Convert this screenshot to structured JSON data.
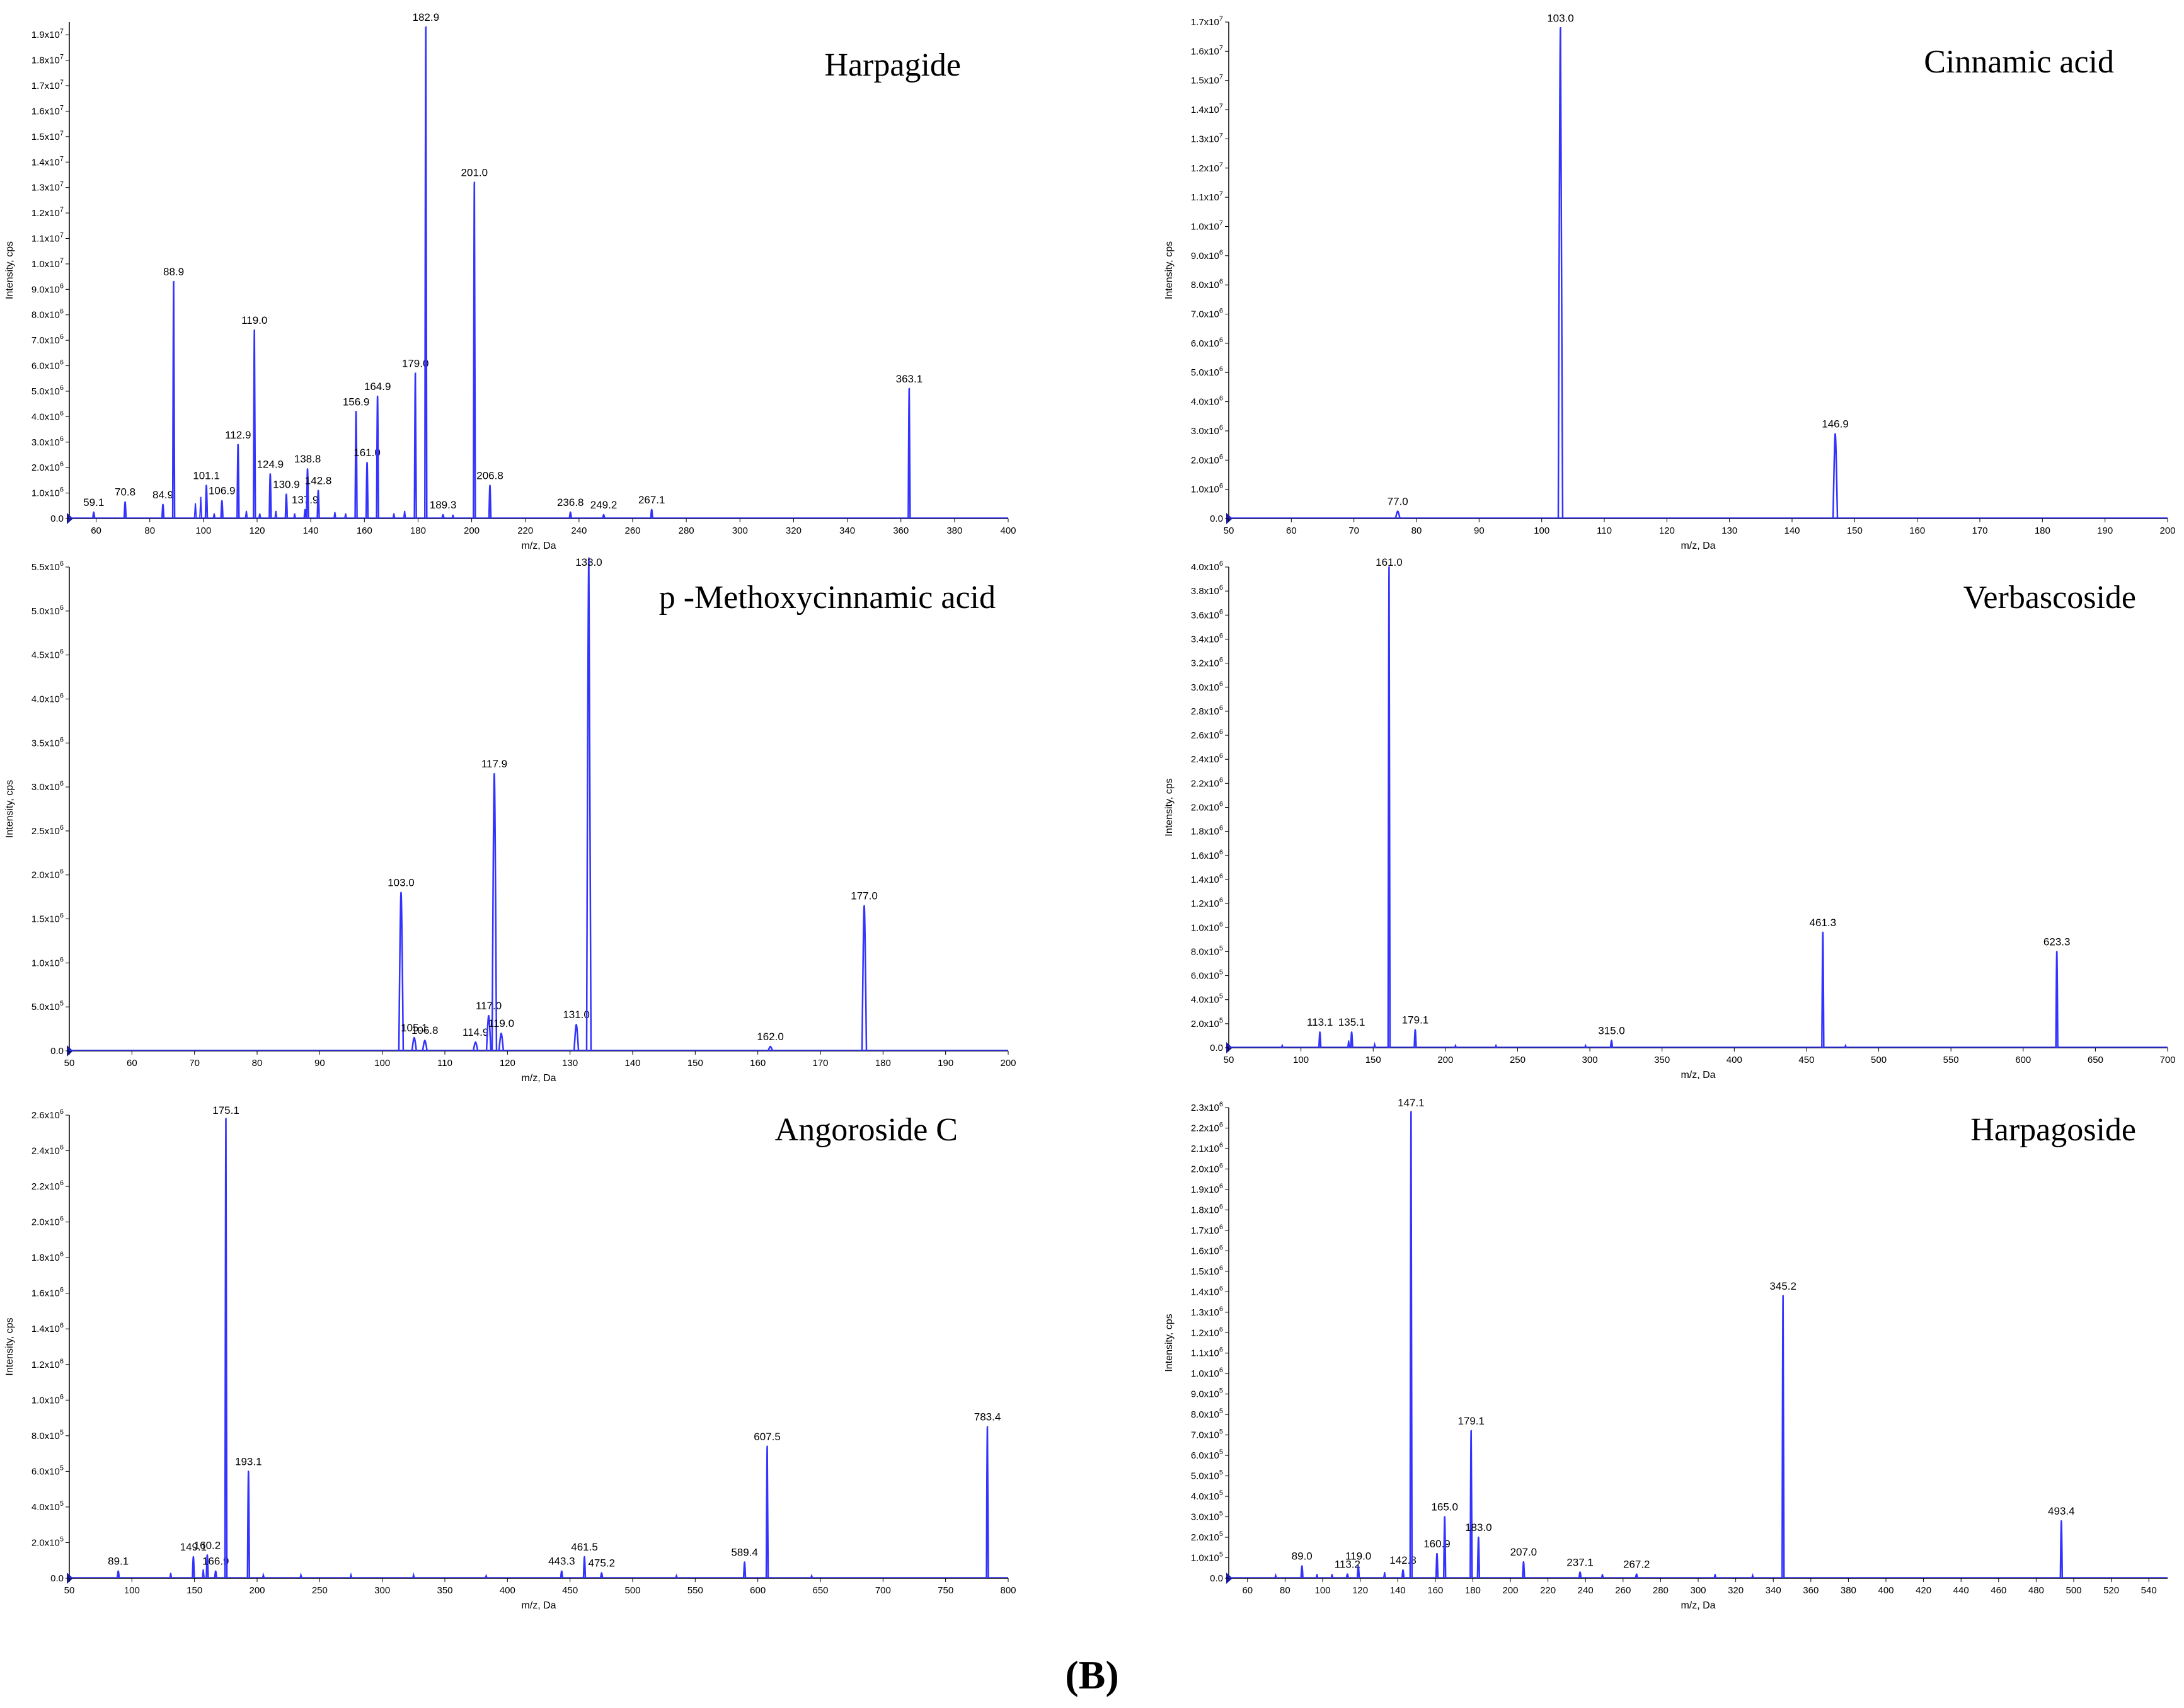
{
  "figure_caption": "(B)",
  "x_axis_label": "m/z, Da",
  "y_axis_label": "Intensity, cps",
  "chart_data": [
    {
      "type": "line",
      "title": "Harpagide",
      "xlabel": "m/z, Da",
      "ylabel": "Intensity, cps",
      "xlim": [
        50,
        400
      ],
      "ylim": [
        0,
        19500000
      ],
      "x_ticks": [
        60,
        80,
        100,
        120,
        140,
        160,
        180,
        200,
        220,
        240,
        260,
        280,
        300,
        320,
        340,
        360,
        380,
        400
      ],
      "y_ticks": [
        "0.0",
        "1.0x10^6",
        "2.0x10^6",
        "3.0x10^6",
        "4.0x10^6",
        "5.0x10^6",
        "6.0x10^6",
        "7.0x10^6",
        "8.0x10^6",
        "9.0x10^6",
        "1.0x10^7",
        "1.1x10^7",
        "1.2x10^7",
        "1.3x10^7",
        "1.4x10^7",
        "1.5x10^7",
        "1.6x10^7",
        "1.7x10^7",
        "1.8x10^7",
        "1.9x10^7"
      ],
      "y_tick_values": [
        0,
        1000000,
        2000000,
        3000000,
        4000000,
        5000000,
        6000000,
        7000000,
        8000000,
        9000000,
        10000000,
        11000000,
        12000000,
        13000000,
        14000000,
        15000000,
        16000000,
        17000000,
        18000000,
        19000000
      ],
      "peaks": [
        {
          "x": 59.1,
          "y": 250000,
          "label": "59.1"
        },
        {
          "x": 70.8,
          "y": 650000,
          "label": "70.8"
        },
        {
          "x": 84.9,
          "y": 550000,
          "label": "84.9"
        },
        {
          "x": 88.9,
          "y": 9300000,
          "label": "88.9"
        },
        {
          "x": 101.1,
          "y": 1300000,
          "label": "101.1"
        },
        {
          "x": 106.9,
          "y": 700000,
          "label": "106.9"
        },
        {
          "x": 112.9,
          "y": 2900000,
          "label": "112.9"
        },
        {
          "x": 119.0,
          "y": 7400000,
          "label": "119.0"
        },
        {
          "x": 124.9,
          "y": 1750000,
          "label": "124.9"
        },
        {
          "x": 130.9,
          "y": 950000,
          "label": "130.9"
        },
        {
          "x": 137.9,
          "y": 350000,
          "label": "137.9"
        },
        {
          "x": 138.8,
          "y": 1950000,
          "label": "138.8"
        },
        {
          "x": 142.8,
          "y": 1100000,
          "label": "142.8"
        },
        {
          "x": 156.9,
          "y": 4200000,
          "label": "156.9"
        },
        {
          "x": 161.0,
          "y": 2200000,
          "label": "161.0"
        },
        {
          "x": 164.9,
          "y": 4800000,
          "label": "164.9"
        },
        {
          "x": 179.0,
          "y": 5700000,
          "label": "179.0"
        },
        {
          "x": 182.9,
          "y": 19300000,
          "label": "182.9"
        },
        {
          "x": 189.3,
          "y": 150000,
          "label": "189.3"
        },
        {
          "x": 201.0,
          "y": 13200000,
          "label": "201.0"
        },
        {
          "x": 206.8,
          "y": 1300000,
          "label": "206.8"
        },
        {
          "x": 236.8,
          "y": 250000,
          "label": "236.8"
        },
        {
          "x": 249.2,
          "y": 150000,
          "label": "249.2"
        },
        {
          "x": 267.1,
          "y": 350000,
          "label": "267.1"
        },
        {
          "x": 363.1,
          "y": 5100000,
          "label": "363.1"
        }
      ],
      "minor_peaks": [
        {
          "x": 97.0,
          "y": 600000
        },
        {
          "x": 99.0,
          "y": 850000
        },
        {
          "x": 104.0,
          "y": 200000
        },
        {
          "x": 116.0,
          "y": 300000
        },
        {
          "x": 121.0,
          "y": 200000
        },
        {
          "x": 127.0,
          "y": 300000
        },
        {
          "x": 134.0,
          "y": 200000
        },
        {
          "x": 149.0,
          "y": 250000
        },
        {
          "x": 153.0,
          "y": 200000
        },
        {
          "x": 171.0,
          "y": 200000
        },
        {
          "x": 175.0,
          "y": 300000
        },
        {
          "x": 193.0,
          "y": 150000
        }
      ]
    },
    {
      "type": "line",
      "title": "Cinnamic acid",
      "xlabel": "m/z, Da",
      "ylabel": "Intensity, cps",
      "xlim": [
        50,
        200
      ],
      "ylim": [
        0,
        17000000
      ],
      "x_ticks": [
        50,
        60,
        70,
        80,
        90,
        100,
        110,
        120,
        130,
        140,
        150,
        160,
        170,
        180,
        190,
        200
      ],
      "y_ticks": [
        "0.0",
        "1.0x10^6",
        "2.0x10^6",
        "3.0x10^6",
        "4.0x10^6",
        "5.0x10^6",
        "6.0x10^6",
        "7.0x10^6",
        "8.0x10^6",
        "9.0x10^6",
        "1.0x10^7",
        "1.1x10^7",
        "1.2x10^7",
        "1.3x10^7",
        "1.4x10^7",
        "1.5x10^7",
        "1.6x10^7",
        "1.7x10^7"
      ],
      "y_tick_values": [
        0,
        1000000,
        2000000,
        3000000,
        4000000,
        5000000,
        6000000,
        7000000,
        8000000,
        9000000,
        10000000,
        11000000,
        12000000,
        13000000,
        14000000,
        15000000,
        16000000,
        17000000
      ],
      "peaks": [
        {
          "x": 77.0,
          "y": 250000,
          "label": "77.0"
        },
        {
          "x": 103.0,
          "y": 16800000,
          "label": "103.0"
        },
        {
          "x": 146.9,
          "y": 2900000,
          "label": "146.9"
        }
      ],
      "minor_peaks": []
    },
    {
      "type": "line",
      "title": "p -Methoxycinnamic acid",
      "xlabel": "m/z, Da",
      "ylabel": "Intensity, cps",
      "xlim": [
        50,
        200
      ],
      "ylim": [
        0,
        5500000
      ],
      "x_ticks": [
        50,
        60,
        70,
        80,
        90,
        100,
        110,
        120,
        130,
        140,
        150,
        160,
        170,
        180,
        190,
        200
      ],
      "y_ticks": [
        "0.0",
        "5.0x10^5",
        "1.0x10^6",
        "1.5x10^6",
        "2.0x10^6",
        "2.5x10^6",
        "3.0x10^6",
        "3.5x10^6",
        "4.0x10^6",
        "4.5x10^6",
        "5.0x10^6",
        "5.5x10^6"
      ],
      "y_tick_values": [
        0,
        500000,
        1000000,
        1500000,
        2000000,
        2500000,
        3000000,
        3500000,
        4000000,
        4500000,
        5000000,
        5500000
      ],
      "peaks": [
        {
          "x": 103.0,
          "y": 1800000,
          "label": "103.0"
        },
        {
          "x": 105.1,
          "y": 150000,
          "label": "105.1"
        },
        {
          "x": 106.8,
          "y": 120000,
          "label": "106.8"
        },
        {
          "x": 114.9,
          "y": 100000,
          "label": "114.9"
        },
        {
          "x": 117.0,
          "y": 400000,
          "label": "117.0"
        },
        {
          "x": 117.9,
          "y": 3150000,
          "label": "117.9"
        },
        {
          "x": 119.0,
          "y": 200000,
          "label": "119.0"
        },
        {
          "x": 131.0,
          "y": 300000,
          "label": "131.0"
        },
        {
          "x": 133.0,
          "y": 5600000,
          "label": "133.0"
        },
        {
          "x": 162.0,
          "y": 50000,
          "label": "162.0"
        },
        {
          "x": 177.0,
          "y": 1650000,
          "label": "177.0"
        }
      ],
      "minor_peaks": []
    },
    {
      "type": "line",
      "title": "Verbascoside",
      "xlabel": "m/z, Da",
      "ylabel": "Intensity, cps",
      "xlim": [
        50,
        700
      ],
      "ylim": [
        0,
        4000000
      ],
      "x_ticks": [
        50,
        100,
        150,
        200,
        250,
        300,
        350,
        400,
        450,
        500,
        550,
        600,
        650,
        700
      ],
      "y_ticks": [
        "0.0",
        "2.0x10^5",
        "4.0x10^5",
        "6.0x10^5",
        "8.0x10^5",
        "1.0x10^6",
        "1.2x10^6",
        "1.4x10^6",
        "1.6x10^6",
        "1.8x10^6",
        "2.0x10^6",
        "2.2x10^6",
        "2.4x10^6",
        "2.6x10^6",
        "2.8x10^6",
        "3.0x10^6",
        "3.2x10^6",
        "3.4x10^6",
        "3.6x10^6",
        "3.8x10^6",
        "4.0x10^6"
      ],
      "y_tick_values": [
        0,
        200000,
        400000,
        600000,
        800000,
        1000000,
        1200000,
        1400000,
        1600000,
        1800000,
        2000000,
        2200000,
        2400000,
        2600000,
        2800000,
        3000000,
        3200000,
        3400000,
        3600000,
        3800000,
        4000000
      ],
      "peaks": [
        {
          "x": 113.1,
          "y": 130000,
          "label": "113.1"
        },
        {
          "x": 135.1,
          "y": 130000,
          "label": "135.1"
        },
        {
          "x": 161.0,
          "y": 4000000,
          "label": "161.0"
        },
        {
          "x": 179.1,
          "y": 150000,
          "label": "179.1"
        },
        {
          "x": 315.0,
          "y": 60000,
          "label": "315.0"
        },
        {
          "x": 461.3,
          "y": 960000,
          "label": "461.3"
        },
        {
          "x": 623.3,
          "y": 800000,
          "label": "623.3"
        }
      ],
      "minor_peaks": [
        {
          "x": 87.0,
          "y": 20000
        },
        {
          "x": 133.0,
          "y": 60000
        },
        {
          "x": 151.0,
          "y": 30000
        },
        {
          "x": 207.0,
          "y": 20000
        },
        {
          "x": 235.0,
          "y": 20000
        },
        {
          "x": 297.0,
          "y": 20000
        },
        {
          "x": 477.0,
          "y": 20000
        }
      ]
    },
    {
      "type": "line",
      "title": "Angoroside C",
      "xlabel": "m/z, Da",
      "ylabel": "Intensity, cps",
      "xlim": [
        50,
        800
      ],
      "ylim": [
        0,
        2600000
      ],
      "x_ticks": [
        50,
        100,
        150,
        200,
        250,
        300,
        350,
        400,
        450,
        500,
        550,
        600,
        650,
        700,
        750,
        800
      ],
      "y_ticks": [
        "0.0",
        "2.0x10^5",
        "4.0x10^5",
        "6.0x10^5",
        "8.0x10^5",
        "1.0x10^6",
        "1.2x10^6",
        "1.4x10^6",
        "1.6x10^6",
        "1.8x10^6",
        "2.0x10^6",
        "2.2x10^6",
        "2.4x10^6",
        "2.6x10^6"
      ],
      "y_tick_values": [
        0,
        200000,
        400000,
        600000,
        800000,
        1000000,
        1200000,
        1400000,
        1600000,
        1800000,
        2000000,
        2200000,
        2400000,
        2600000
      ],
      "peaks": [
        {
          "x": 89.1,
          "y": 40000,
          "label": "89.1"
        },
        {
          "x": 149.1,
          "y": 120000,
          "label": "149.1"
        },
        {
          "x": 160.2,
          "y": 130000,
          "label": "160.2"
        },
        {
          "x": 166.9,
          "y": 40000,
          "label": "166.9"
        },
        {
          "x": 175.1,
          "y": 2580000,
          "label": "175.1"
        },
        {
          "x": 193.1,
          "y": 600000,
          "label": "193.1"
        },
        {
          "x": 443.3,
          "y": 40000,
          "label": "443.3"
        },
        {
          "x": 461.5,
          "y": 120000,
          "label": "461.5"
        },
        {
          "x": 475.2,
          "y": 30000,
          "label": "475.2"
        },
        {
          "x": 589.4,
          "y": 90000,
          "label": "589.4"
        },
        {
          "x": 607.5,
          "y": 740000,
          "label": "607.5"
        },
        {
          "x": 783.4,
          "y": 850000,
          "label": "783.4"
        }
      ],
      "minor_peaks": [
        {
          "x": 131.0,
          "y": 30000
        },
        {
          "x": 157.0,
          "y": 50000
        },
        {
          "x": 205.0,
          "y": 20000
        },
        {
          "x": 235.0,
          "y": 20000
        },
        {
          "x": 275.0,
          "y": 20000
        },
        {
          "x": 325.0,
          "y": 20000
        },
        {
          "x": 383.0,
          "y": 15000
        },
        {
          "x": 535.0,
          "y": 15000
        },
        {
          "x": 643.0,
          "y": 15000
        }
      ]
    },
    {
      "type": "line",
      "title": "Harpagoside",
      "xlabel": "m/z, Da",
      "ylabel": "Intensity, cps",
      "xlim": [
        50,
        550
      ],
      "ylim": [
        0,
        2300000
      ],
      "x_ticks": [
        60,
        80,
        100,
        120,
        140,
        160,
        180,
        200,
        220,
        240,
        260,
        280,
        300,
        320,
        340,
        360,
        380,
        400,
        420,
        440,
        460,
        480,
        500,
        520,
        540
      ],
      "y_ticks": [
        "0.0",
        "1.0x10^5",
        "2.0x10^5",
        "3.0x10^5",
        "4.0x10^5",
        "5.0x10^5",
        "6.0x10^5",
        "7.0x10^5",
        "8.0x10^5",
        "9.0x10^5",
        "1.0x10^6",
        "1.1x10^6",
        "1.2x10^6",
        "1.3x10^6",
        "1.4x10^6",
        "1.5x10^6",
        "1.6x10^6",
        "1.7x10^6",
        "1.8x10^6",
        "1.9x10^6",
        "2.0x10^6",
        "2.1x10^6",
        "2.2x10^6",
        "2.3x10^6"
      ],
      "y_tick_values": [
        0,
        100000,
        200000,
        300000,
        400000,
        500000,
        600000,
        700000,
        800000,
        900000,
        1000000,
        1100000,
        1200000,
        1300000,
        1400000,
        1500000,
        1600000,
        1700000,
        1800000,
        1900000,
        2000000,
        2100000,
        2200000,
        2300000
      ],
      "peaks": [
        {
          "x": 89.0,
          "y": 60000,
          "label": "89.0"
        },
        {
          "x": 113.2,
          "y": 20000,
          "label": "113.2"
        },
        {
          "x": 119.0,
          "y": 60000,
          "label": "119.0"
        },
        {
          "x": 142.8,
          "y": 40000,
          "label": "142.8"
        },
        {
          "x": 147.1,
          "y": 2280000,
          "label": "147.1"
        },
        {
          "x": 160.9,
          "y": 120000,
          "label": "160.9"
        },
        {
          "x": 165.0,
          "y": 300000,
          "label": "165.0"
        },
        {
          "x": 179.1,
          "y": 720000,
          "label": "179.1"
        },
        {
          "x": 183.0,
          "y": 200000,
          "label": "183.0"
        },
        {
          "x": 207.0,
          "y": 80000,
          "label": "207.0"
        },
        {
          "x": 237.1,
          "y": 30000,
          "label": "237.1"
        },
        {
          "x": 267.2,
          "y": 20000,
          "label": "267.2"
        },
        {
          "x": 345.2,
          "y": 1380000,
          "label": "345.2"
        },
        {
          "x": 493.4,
          "y": 280000,
          "label": "493.4"
        }
      ],
      "minor_peaks": [
        {
          "x": 75.0,
          "y": 15000
        },
        {
          "x": 97.0,
          "y": 20000
        },
        {
          "x": 105.0,
          "y": 20000
        },
        {
          "x": 133.0,
          "y": 30000
        },
        {
          "x": 249.0,
          "y": 20000
        },
        {
          "x": 309.0,
          "y": 20000
        },
        {
          "x": 329.0,
          "y": 15000
        }
      ]
    }
  ]
}
